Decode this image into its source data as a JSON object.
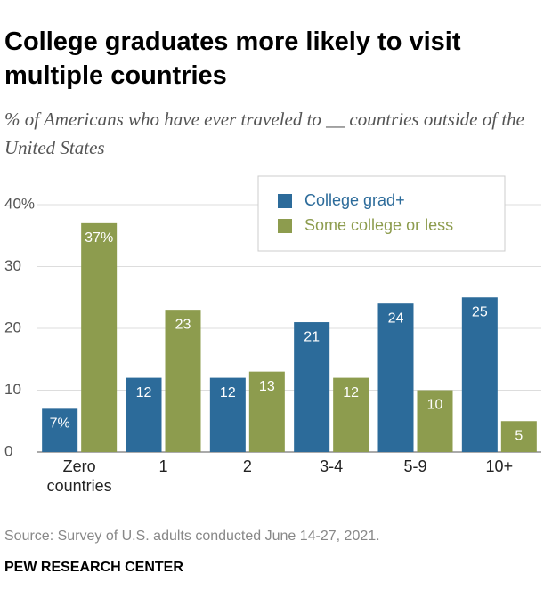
{
  "chart_data": {
    "type": "bar",
    "title": "College graduates more likely to visit multiple countries",
    "subtitle": "% of Americans who have ever traveled to __ countries outside of the United States",
    "categories": [
      "Zero countries",
      "1",
      "2",
      "3-4",
      "5-9",
      "10+"
    ],
    "series": [
      {
        "name": "College grad+",
        "color": "#2c6b9a",
        "values": [
          7,
          12,
          12,
          21,
          24,
          25
        ],
        "value_labels": [
          "7%",
          "12",
          "12",
          "21",
          "24",
          "25"
        ]
      },
      {
        "name": "Some college or less",
        "color": "#8d9c4e",
        "values": [
          37,
          23,
          13,
          12,
          10,
          5
        ],
        "value_labels": [
          "37%",
          "23",
          "13",
          "12",
          "10",
          "5"
        ]
      }
    ],
    "ylim": [
      0,
      40
    ],
    "yticks": [
      0,
      10,
      20,
      30,
      {
        "value": 40,
        "label": "40%"
      }
    ],
    "grid": true,
    "legend": "top-right",
    "source": "Source: Survey of U.S. adults conducted June 14-27, 2021.",
    "organization": "PEW RESEARCH CENTER"
  }
}
